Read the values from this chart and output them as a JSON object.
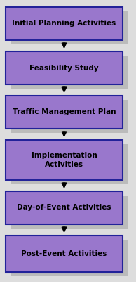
{
  "labels": [
    "Initial Planning Activities",
    "Feasibility Study",
    "Traffic Management Plan",
    "Implementation\nActivities",
    "Day-of-Event Activities",
    "Post-Event Activities"
  ],
  "box_color": "#9977CC",
  "box_edge_color": "#222299",
  "shadow_color": "#BBBBBB",
  "arrow_color": "#000000",
  "text_color": "#000000",
  "bg_color": "#DDDDDD",
  "fig_width": 1.94,
  "fig_height": 4.01,
  "font_size": 7.5
}
